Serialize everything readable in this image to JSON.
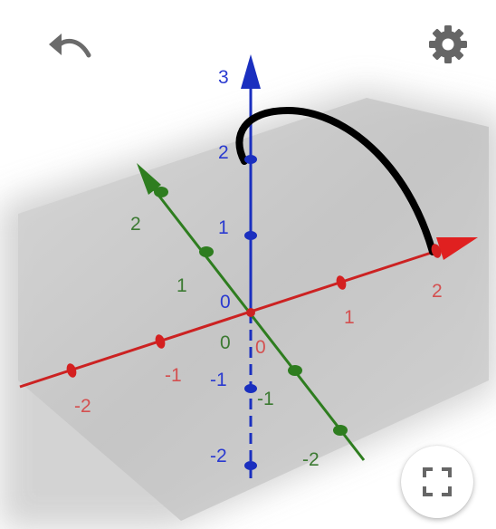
{
  "toolbar": {
    "undo_icon": "undo-icon",
    "settings_icon": "gear-icon",
    "fullscreen_icon": "fullscreen-icon"
  },
  "graph": {
    "axes": {
      "x": {
        "color": "#cc2222",
        "tick_labels": [
          "-2",
          "-1",
          "1",
          "2"
        ],
        "origin_label": "0"
      },
      "y": {
        "color": "#2e7d1f",
        "tick_labels": [
          "-2",
          "-1",
          "1",
          "2"
        ],
        "origin_label": "0"
      },
      "z": {
        "color": "#1a2fbf",
        "tick_labels": [
          "-2",
          "-1",
          "1",
          "2",
          "3"
        ],
        "origin_label": "0"
      }
    },
    "curve_color": "#000000",
    "plane_color": "#c8c8c8"
  }
}
